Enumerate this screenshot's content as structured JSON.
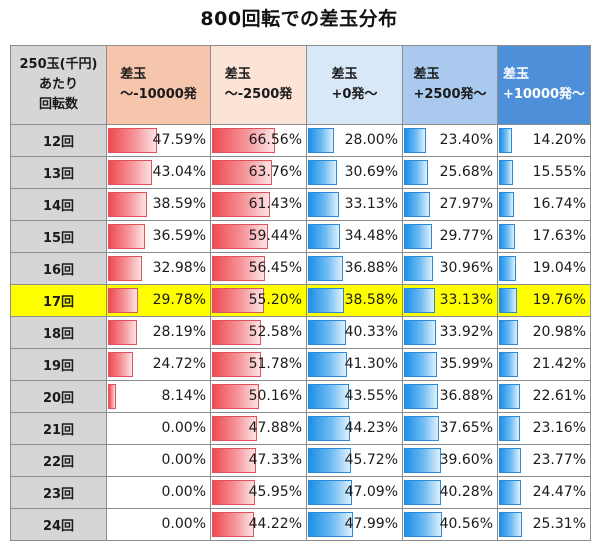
{
  "chart_data": {
    "type": "table",
    "title": "800回転での差玉分布",
    "row_header": [
      "250玉(千円)",
      "あたり",
      "回転数"
    ],
    "columns": [
      {
        "line1": "差玉",
        "line2": "～-10000発",
        "bg": "#f6c6ac",
        "bar": "red"
      },
      {
        "line1": "差玉",
        "line2": "～-2500発",
        "bg": "#fbe3d6",
        "bar": "red"
      },
      {
        "line1": "差玉",
        "line2": "+0発～",
        "bg": "#d9e8f8",
        "bar": "blue"
      },
      {
        "line1": "差玉",
        "line2": "+2500発～",
        "bg": "#a9c9ef",
        "bar": "blue"
      },
      {
        "line1": "差玉",
        "line2": "+10000発～",
        "bg": "#4d8fd8",
        "bar": "blue"
      }
    ],
    "rows": [
      {
        "label": "12回",
        "values": [
          47.59,
          66.56,
          28.0,
          23.4,
          14.2
        ]
      },
      {
        "label": "13回",
        "values": [
          43.04,
          63.76,
          30.69,
          25.68,
          15.55
        ]
      },
      {
        "label": "14回",
        "values": [
          38.59,
          61.43,
          33.13,
          27.97,
          16.74
        ]
      },
      {
        "label": "15回",
        "values": [
          36.59,
          59.44,
          34.48,
          29.77,
          17.63
        ]
      },
      {
        "label": "16回",
        "values": [
          32.98,
          56.45,
          36.88,
          30.96,
          19.04
        ]
      },
      {
        "label": "17回",
        "values": [
          29.78,
          55.2,
          38.58,
          33.13,
          19.76
        ],
        "highlight": true
      },
      {
        "label": "18回",
        "values": [
          28.19,
          52.58,
          40.33,
          33.92,
          20.98
        ]
      },
      {
        "label": "19回",
        "values": [
          24.72,
          51.78,
          41.3,
          35.99,
          21.42
        ]
      },
      {
        "label": "20回",
        "values": [
          8.14,
          50.16,
          43.55,
          36.88,
          22.61
        ]
      },
      {
        "label": "21回",
        "values": [
          0.0,
          47.88,
          44.23,
          37.65,
          23.16
        ]
      },
      {
        "label": "22回",
        "values": [
          0.0,
          47.33,
          45.72,
          39.6,
          23.77
        ]
      },
      {
        "label": "23回",
        "values": [
          0.0,
          45.95,
          47.09,
          40.28,
          24.47
        ]
      },
      {
        "label": "24回",
        "values": [
          0.0,
          44.22,
          47.99,
          40.56,
          25.31
        ]
      }
    ],
    "value_unit": "%",
    "highlight_color": "#ffff00"
  }
}
